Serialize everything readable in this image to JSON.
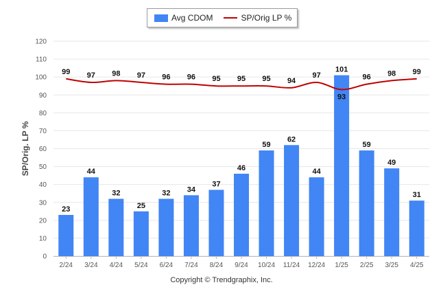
{
  "legend": {
    "bar_label": "Avg CDOM",
    "line_label": "SP/Orig LP %"
  },
  "footer": {
    "copyright": "Copyright © Trendgraphix, Inc."
  },
  "colors": {
    "bar": "#4285f4",
    "line": "#c00000",
    "grid": "#e6e6e6",
    "axis": "#999999"
  },
  "chart_data": {
    "type": "bar",
    "title": "",
    "xlabel": "",
    "ylabel": "SP/Orig. LP %",
    "ylim": [
      0,
      120
    ],
    "yticks": [
      0,
      10,
      20,
      30,
      40,
      50,
      60,
      70,
      80,
      90,
      100,
      110,
      120
    ],
    "grid": true,
    "legend_position": "top-center",
    "categories": [
      "2/24",
      "3/24",
      "4/24",
      "5/24",
      "6/24",
      "7/24",
      "8/24",
      "9/24",
      "10/24",
      "11/24",
      "12/24",
      "1/25",
      "2/25",
      "3/25",
      "4/25"
    ],
    "series": [
      {
        "name": "Avg CDOM",
        "type": "bar",
        "values": [
          23,
          44,
          32,
          25,
          32,
          34,
          37,
          46,
          59,
          62,
          44,
          101,
          59,
          49,
          31
        ]
      },
      {
        "name": "SP/Orig LP %",
        "type": "line",
        "values": [
          99,
          97,
          98,
          97,
          96,
          96,
          95,
          95,
          95,
          94,
          97,
          93,
          96,
          98,
          99
        ]
      }
    ]
  }
}
